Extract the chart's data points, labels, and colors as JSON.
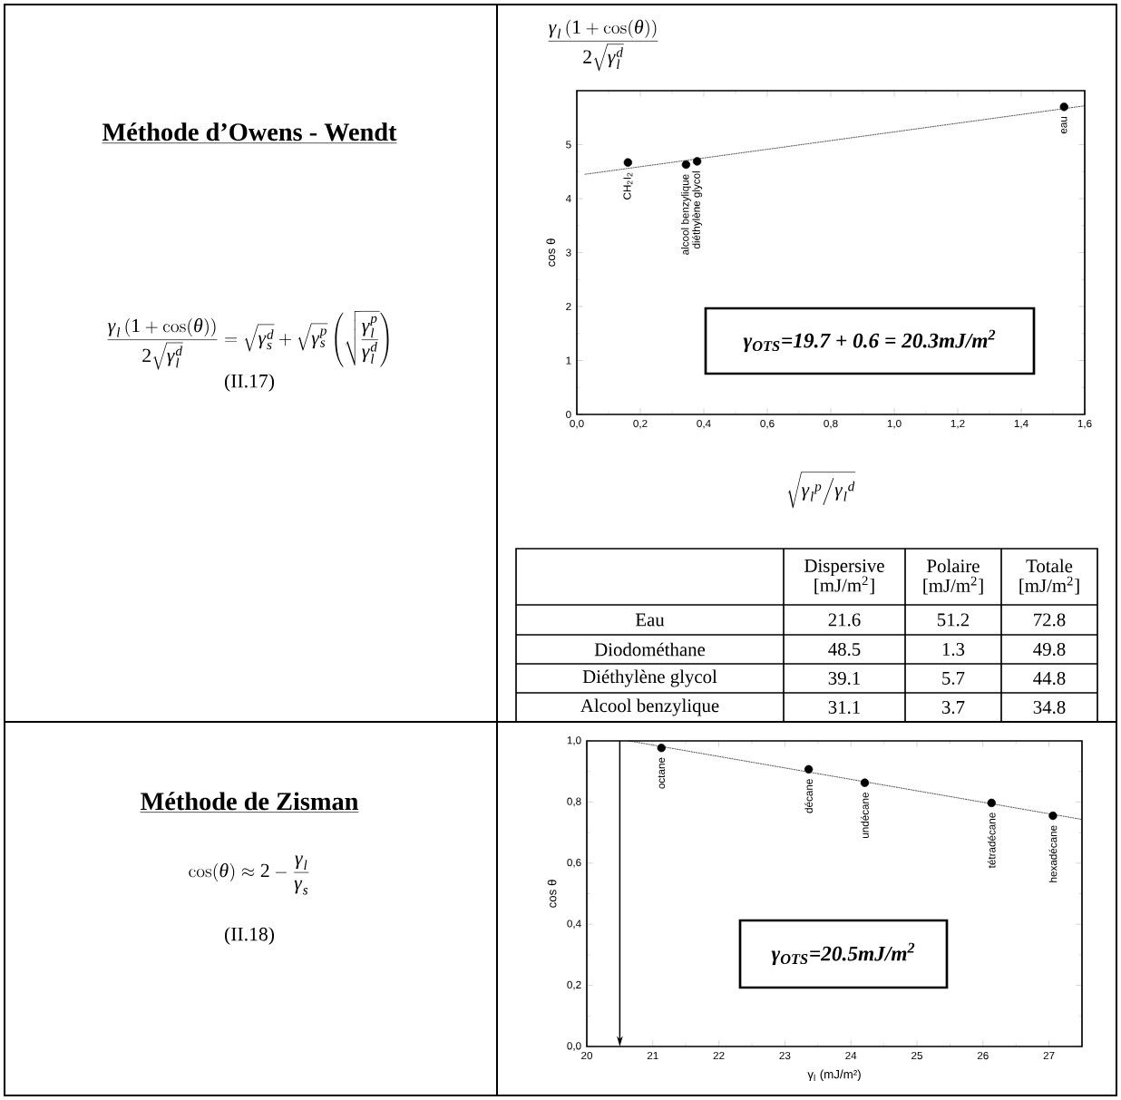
{
  "chart_data": [
    {
      "type": "other",
      "title": "Méthode d’Owens - Wendt",
      "annotations": [
        "\\frac{\\gamma_{l}\\left(1+\\cos(\\theta)\\right)}{2\\sqrt{\\gamma_{l}^{d}}}=\\sqrt{\\gamma_{s}^{d}}+\\sqrt{\\gamma_{s}^{p}}\\left(\\sqrt{\\frac{\\gamma_{l}^{p}}{\\gamma_{l}^{d}}}\\right)",
        "(II.17)"
      ]
    },
    {
      "type": "scatter",
      "ylabel": "cos θ",
      "xlabel": "\\sqrt{{\\gamma_{l}}^{p}\\Big/{\\gamma_{l}}^{d}}",
      "annotations": [
        "\\frac{\\gamma_{l}\\left(1+\\cos(\\theta)\\right)}{2\\sqrt{\\gamma_{l}^{d}}}",
        "γ$_{OTS}$=19.7 + 0.6 = 20.3mJ/m$^{2}$",
        {
          "text": "CH$_{2}$I$_{2}$",
          "x": 0.161,
          "y": 4.67
        },
        {
          "text": "alcool benzylique",
          "x": 0.344,
          "y": 4.63
        },
        {
          "text": "diéthylène glycol",
          "x": 0.379,
          "y": 4.69
        },
        {
          "text": "eau",
          "x": 1.535,
          "y": 5.7
        }
      ],
      "x": [
        0.161,
        0.344,
        0.379,
        1.535
      ],
      "series": [
        {
          "color": "#000000",
          "values": [
            4.67,
            4.63,
            4.69,
            5.7
          ]
        },
        {
          "type": "line",
          "color": "#000000",
          "line_style": "dotted",
          "x": [
            0.025,
            1.6
          ],
          "values": [
            4.45,
            5.72
          ]
        }
      ],
      "xlim": [
        0,
        1.6
      ],
      "ylim": [
        0,
        6
      ],
      "xticks": [
        {
          "value": 0,
          "label": "0,0"
        },
        {
          "value": 0.2,
          "label": "0,2"
        },
        {
          "value": 0.4,
          "label": "0,4"
        },
        {
          "value": 0.6,
          "label": "0,6"
        },
        {
          "value": 0.8,
          "label": "0,8"
        },
        {
          "value": 1.0,
          "label": "1,0"
        },
        {
          "value": 1.2,
          "label": "1,2"
        },
        {
          "value": 1.4,
          "label": "1,4"
        },
        {
          "value": 1.6,
          "label": "1,6"
        }
      ],
      "yticks": [
        0,
        1,
        2,
        3,
        4,
        5
      ]
    },
    {
      "type": "heatmap",
      "data_labels": true,
      "categories": [
        "Dispersive [mJ/m$^{2}$]",
        "Polaire [mJ/m$^{2}$]",
        "Totale [mJ/m$^{2}$]"
      ],
      "y_categories": [
        "Eau",
        "Diodométhane",
        "Diéthylène glycol",
        "Alcool benzylique"
      ],
      "cells": [
        [
          21.6,
          51.2,
          72.8
        ],
        [
          48.5,
          1.3,
          49.8
        ],
        [
          39.1,
          5.7,
          44.8
        ],
        [
          31.1,
          3.7,
          34.8
        ]
      ]
    },
    {
      "type": "other",
      "title": "Méthode de Zisman",
      "annotations": [
        "\\cos(\\theta)\\approx 2-\\frac{\\gamma_{l}}{\\gamma_{s}}",
        "(II.18)"
      ]
    },
    {
      "type": "scatter",
      "ylabel": "cos θ",
      "xlabel": "γ$_{l}$ (mJ/m²)",
      "annotations": [
        "γ$_{OTS}$=20.5mJ/m$^{2}$",
        {
          "text": "octane",
          "x": 21.13,
          "y": 0.977
        },
        {
          "text": "décane",
          "x": 23.36,
          "y": 0.907
        },
        {
          "text": "undécane",
          "x": 24.21,
          "y": 0.863
        },
        {
          "text": "tétradécane",
          "x": 26.13,
          "y": 0.797
        },
        {
          "text": "hexadécane",
          "x": 27.06,
          "y": 0.755
        }
      ],
      "x": [
        21.13,
        23.36,
        24.21,
        26.13,
        27.06
      ],
      "series": [
        {
          "color": "#000000",
          "values": [
            0.977,
            0.907,
            0.863,
            0.797,
            0.755
          ]
        },
        {
          "type": "line",
          "color": "#000000",
          "line_style": "dotted",
          "x": [
            20.64,
            27.5
          ],
          "values": [
            1.0,
            0.743
          ]
        }
      ],
      "ref_lines": [
        {
          "axis": "x",
          "value": 20.5
        }
      ],
      "xlim": [
        20,
        27.5
      ],
      "ylim": [
        0,
        1.0
      ],
      "xticks": [
        20,
        21,
        22,
        23,
        24,
        25,
        26,
        27
      ],
      "yticks": [
        {
          "value": 0,
          "label": "0,0"
        },
        {
          "value": 0.2,
          "label": "0,2"
        },
        {
          "value": 0.4,
          "label": "0,4"
        },
        {
          "value": 0.6,
          "label": "0,6"
        },
        {
          "value": 0.8,
          "label": "0,8"
        },
        {
          "value": 1.0,
          "label": "1,0"
        }
      ]
    }
  ]
}
